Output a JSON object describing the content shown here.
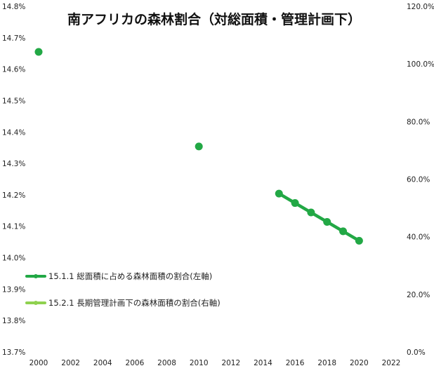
{
  "chart_data": {
    "type": "line",
    "title": "南アフリカの森林割合（対総面積・管理計画下）",
    "x": [
      2000,
      2010,
      2015,
      2016,
      2017,
      2018,
      2019,
      2020
    ],
    "xlim": [
      2000,
      2022
    ],
    "x_ticks": [
      "2000",
      "2002",
      "2004",
      "2006",
      "2008",
      "2010",
      "2012",
      "2014",
      "2016",
      "2018",
      "2020",
      "2022"
    ],
    "y_left": {
      "lim": [
        13.7,
        14.8
      ],
      "ticks": [
        "13.7%",
        "13.8%",
        "13.9%",
        "14.0%",
        "14.1%",
        "14.2%",
        "14.3%",
        "14.4%",
        "14.5%",
        "14.6%",
        "14.7%",
        "14.8%"
      ]
    },
    "y_right": {
      "lim": [
        0,
        120
      ],
      "ticks": [
        "0.0%",
        "20.0%",
        "40.0%",
        "60.0%",
        "80.0%",
        "100.0%",
        "120.0%"
      ]
    },
    "series": [
      {
        "name": "15.1.1 総面積に占める森林面積の割合(左軸)",
        "axis": "left",
        "color": "#22a845",
        "points": [
          {
            "x": 2000,
            "y": 14.655
          },
          {
            "x": 2010,
            "y": 14.354
          },
          {
            "x": 2015,
            "y": 14.204
          },
          {
            "x": 2016,
            "y": 14.174
          },
          {
            "x": 2017,
            "y": 14.144
          },
          {
            "x": 2018,
            "y": 14.114
          },
          {
            "x": 2019,
            "y": 14.084
          },
          {
            "x": 2020,
            "y": 14.054
          }
        ]
      },
      {
        "name": "15.2.1 長期管理計画下の森林面積の割合(右軸)",
        "axis": "right",
        "color": "#8fd14f",
        "points": []
      }
    ],
    "grid": false,
    "legend_position": "lower-left"
  }
}
